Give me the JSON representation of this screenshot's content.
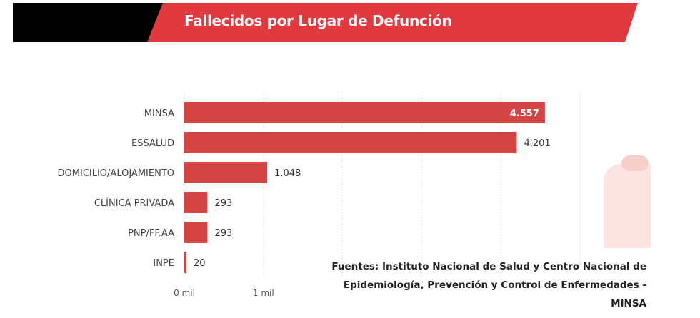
{
  "header": {
    "title": "Fallecidos por Lugar de Defunción"
  },
  "chart_data": {
    "type": "bar",
    "orientation": "horizontal",
    "categories": [
      "MINSA",
      "ESSALUD",
      "DOMICILIO/ALOJAMIENTO",
      "CLÍNICA PRIVADA",
      "PNP/FF.AA",
      "INPE"
    ],
    "values": [
      4557,
      4201,
      1048,
      293,
      293,
      20
    ],
    "value_labels": [
      "4.557",
      "4.201",
      "1.048",
      "293",
      "293",
      "20"
    ],
    "x_ticks": [
      0,
      1000
    ],
    "x_tick_labels": [
      "0 mil",
      "1 mil"
    ],
    "xlim": [
      0,
      5000
    ],
    "grid": true,
    "bar_color": "#d64545"
  },
  "source_note": {
    "line1": "Fuentes: Instituto Nacional de Salud y Centro Nacional de",
    "line2": "Epidemiología, Prevención y Control de Enfermedades -",
    "line3": "MINSA"
  },
  "colors": {
    "banner_red": "#e03a3e",
    "banner_black": "#000000",
    "bar": "#d64545"
  }
}
